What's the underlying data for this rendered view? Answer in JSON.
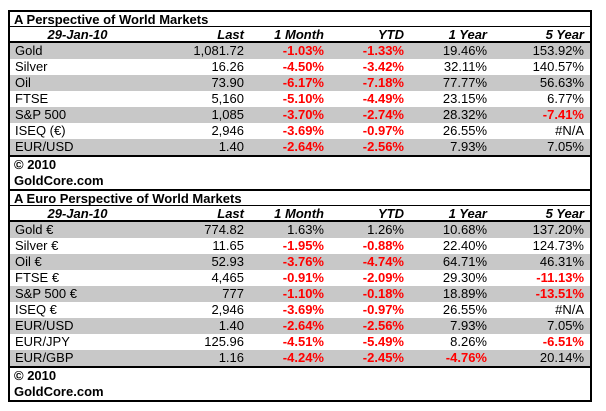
{
  "colors": {
    "negative": "#ff0000",
    "row_shade": "#c8c8c8",
    "border": "#000000",
    "background": "#ffffff"
  },
  "chart_data": [
    {
      "type": "table",
      "title": "A Perspective of World Markets",
      "date_label": "29-Jan-10",
      "columns": [
        "Last",
        "1 Month",
        "YTD",
        "1 Year",
        "5 Year"
      ],
      "rows": [
        {
          "label": "Gold",
          "last": "1,081.72",
          "m1": "-1.03%",
          "ytd": "-1.33%",
          "y1": "19.46%",
          "y5": "153.92%",
          "neg": [
            "m1",
            "ytd"
          ]
        },
        {
          "label": "Silver",
          "last": "16.26",
          "m1": "-4.50%",
          "ytd": "-3.42%",
          "y1": "32.11%",
          "y5": "140.57%",
          "neg": [
            "m1",
            "ytd"
          ]
        },
        {
          "label": "Oil",
          "last": "73.90",
          "m1": "-6.17%",
          "ytd": "-7.18%",
          "y1": "77.77%",
          "y5": "56.63%",
          "neg": [
            "m1",
            "ytd"
          ]
        },
        {
          "label": "FTSE",
          "last": "5,160",
          "m1": "-5.10%",
          "ytd": "-4.49%",
          "y1": "23.15%",
          "y5": "6.77%",
          "neg": [
            "m1",
            "ytd"
          ]
        },
        {
          "label": "S&P 500",
          "last": "1,085",
          "m1": "-3.70%",
          "ytd": "-2.74%",
          "y1": "28.32%",
          "y5": "-7.41%",
          "neg": [
            "m1",
            "ytd",
            "y5"
          ]
        },
        {
          "label": "ISEQ (€)",
          "last": "2,946",
          "m1": "-3.69%",
          "ytd": "-0.97%",
          "y1": "26.55%",
          "y5": "#N/A",
          "neg": [
            "m1",
            "ytd"
          ]
        },
        {
          "label": "EUR/USD",
          "last": "1.40",
          "m1": "-2.64%",
          "ytd": "-2.56%",
          "y1": "7.93%",
          "y5": "7.05%",
          "neg": [
            "m1",
            "ytd"
          ]
        }
      ],
      "footer": [
        "© 2010",
        "GoldCore.com"
      ]
    },
    {
      "type": "table",
      "title": "A Euro Perspective of World Markets",
      "date_label": "29-Jan-10",
      "columns": [
        "Last",
        "1 Month",
        "YTD",
        "1 Year",
        "5 Year"
      ],
      "rows": [
        {
          "label": "Gold €",
          "last": "774.82",
          "m1": "1.63%",
          "ytd": "1.26%",
          "y1": "10.68%",
          "y5": "137.20%",
          "neg": []
        },
        {
          "label": "Silver €",
          "last": "11.65",
          "m1": "-1.95%",
          "ytd": "-0.88%",
          "y1": "22.40%",
          "y5": "124.73%",
          "neg": [
            "m1",
            "ytd"
          ]
        },
        {
          "label": "Oil €",
          "last": "52.93",
          "m1": "-3.76%",
          "ytd": "-4.74%",
          "y1": "64.71%",
          "y5": "46.31%",
          "neg": [
            "m1",
            "ytd"
          ]
        },
        {
          "label": "FTSE €",
          "last": "4,465",
          "m1": "-0.91%",
          "ytd": "-2.09%",
          "y1": "29.30%",
          "y5": "-11.13%",
          "neg": [
            "m1",
            "ytd",
            "y5"
          ]
        },
        {
          "label": "S&P 500 €",
          "last": "777",
          "m1": "-1.10%",
          "ytd": "-0.18%",
          "y1": "18.89%",
          "y5": "-13.51%",
          "neg": [
            "m1",
            "ytd",
            "y5"
          ]
        },
        {
          "label": "ISEQ €",
          "last": "2,946",
          "m1": "-3.69%",
          "ytd": "-0.97%",
          "y1": "26.55%",
          "y5": "#N/A",
          "neg": [
            "m1",
            "ytd"
          ]
        },
        {
          "label": "EUR/USD",
          "last": "1.40",
          "m1": "-2.64%",
          "ytd": "-2.56%",
          "y1": "7.93%",
          "y5": "7.05%",
          "neg": [
            "m1",
            "ytd"
          ]
        },
        {
          "label": "EUR/JPY",
          "last": "125.96",
          "m1": "-4.51%",
          "ytd": "-5.49%",
          "y1": "8.26%",
          "y5": "-6.51%",
          "neg": [
            "m1",
            "ytd",
            "y5"
          ]
        },
        {
          "label": "EUR/GBP",
          "last": "1.16",
          "m1": "-4.24%",
          "ytd": "-2.45%",
          "y1": "-4.76%",
          "y5": "20.14%",
          "neg": [
            "m1",
            "ytd",
            "y1"
          ]
        }
      ],
      "footer": [
        "© 2010",
        "GoldCore.com"
      ]
    }
  ]
}
